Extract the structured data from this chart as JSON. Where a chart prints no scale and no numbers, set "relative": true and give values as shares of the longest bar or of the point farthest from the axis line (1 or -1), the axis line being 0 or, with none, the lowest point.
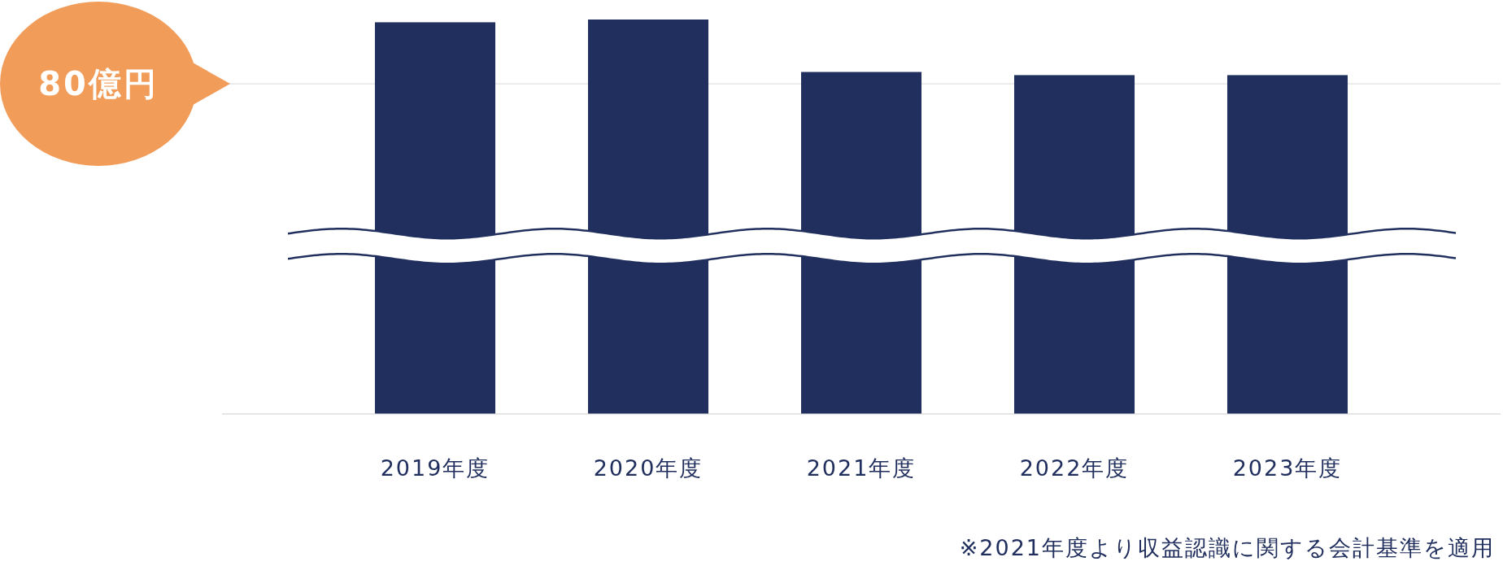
{
  "chart_data": {
    "type": "bar",
    "relative": true,
    "categories": [
      "2019年度",
      "2020年度",
      "2021年度",
      "2022年度",
      "2023年度"
    ],
    "values": [
      0.993,
      1,
      0.867,
      0.859,
      0.859
    ],
    "color": "#212f5e",
    "ref_lines": [
      {
        "axis": "y",
        "value": 0.837,
        "label": "80億円",
        "color": "#d9d9d9"
      }
    ],
    "annotations": [
      "※2021年度より収益認識に関する会計基準を適用"
    ]
  }
}
